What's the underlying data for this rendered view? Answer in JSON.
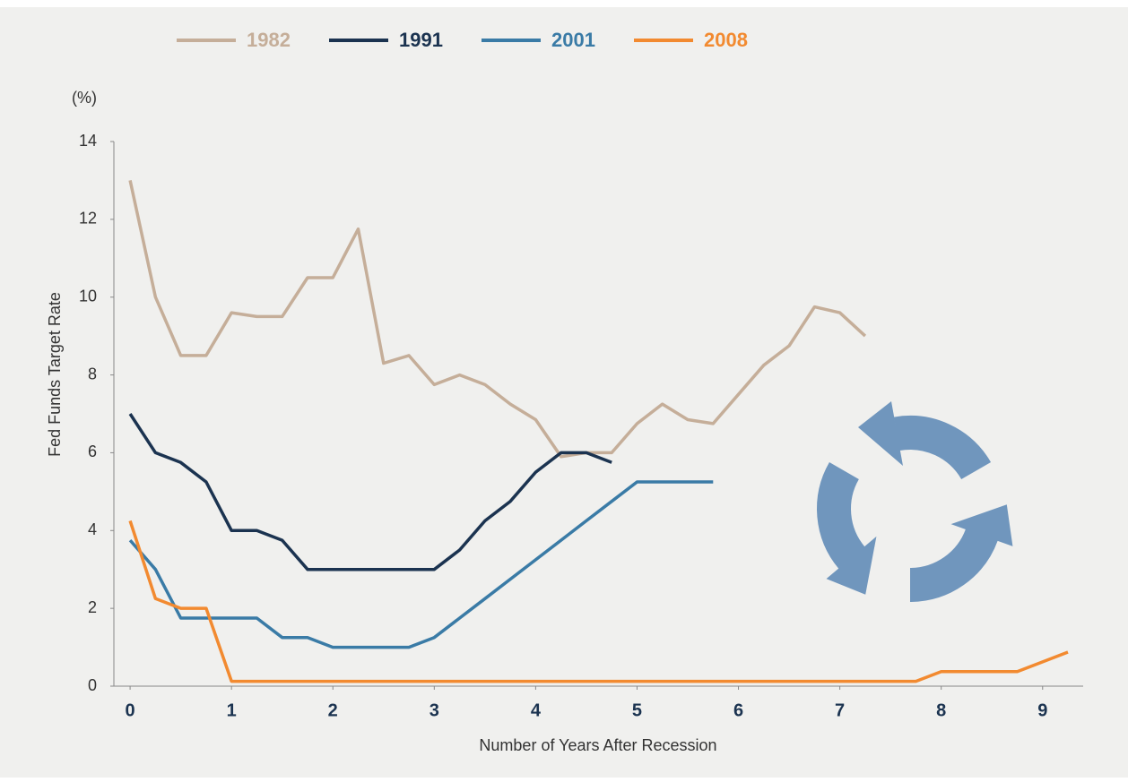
{
  "chart_data": {
    "type": "line",
    "y_unit": "(%)",
    "ylabel": "Fed Funds Target Rate",
    "xlabel": "Number of Years After Recession",
    "x": [
      0,
      0.25,
      0.5,
      0.75,
      1,
      1.25,
      1.5,
      1.75,
      2,
      2.25,
      2.5,
      2.75,
      3,
      3.25,
      3.5,
      3.75,
      4,
      4.25,
      4.5,
      4.75,
      5,
      5.25,
      5.5,
      5.75,
      6,
      6.25,
      6.5,
      6.75,
      7,
      7.25,
      7.5,
      7.75,
      8,
      8.25,
      8.5,
      8.75,
      9,
      9.25
    ],
    "series": [
      {
        "name": "1982",
        "color": "#c5ae99",
        "values": [
          13,
          10,
          8.5,
          8.5,
          9.6,
          9.5,
          9.5,
          10.5,
          10.5,
          11.75,
          8.3,
          8.5,
          7.75,
          8,
          7.75,
          7.25,
          6.85,
          5.9,
          6,
          6,
          6.75,
          7.25,
          6.85,
          6.75,
          7.5,
          8.25,
          8.75,
          9.75,
          9.6,
          9,
          null,
          null,
          null,
          null,
          null,
          null,
          null,
          null
        ]
      },
      {
        "name": "1991",
        "color": "#1b3350",
        "values": [
          7,
          6,
          5.75,
          5.25,
          4,
          4,
          3.75,
          3,
          3,
          3,
          3,
          3,
          3,
          3.5,
          4.25,
          4.75,
          5.5,
          6,
          6,
          5.75,
          null,
          null,
          null,
          null,
          null,
          null,
          null,
          null,
          null,
          null,
          null,
          null,
          null,
          null,
          null,
          null,
          null,
          null
        ]
      },
      {
        "name": "2001",
        "color": "#3a7ba6",
        "values": [
          3.75,
          3,
          1.75,
          1.75,
          1.75,
          1.75,
          1.25,
          1.25,
          1,
          1,
          1,
          1,
          1.25,
          1.75,
          2.25,
          2.75,
          3.25,
          3.75,
          4.25,
          4.75,
          5.25,
          5.25,
          5.25,
          5.25,
          null,
          null,
          null,
          null,
          null,
          null,
          null,
          null,
          null,
          null,
          null,
          null,
          null,
          null
        ]
      },
      {
        "name": "2008",
        "color": "#f28a30",
        "values": [
          4.25,
          2.25,
          2,
          2,
          0.125,
          0.125,
          0.125,
          0.125,
          0.125,
          0.125,
          0.125,
          0.125,
          0.125,
          0.125,
          0.125,
          0.125,
          0.125,
          0.125,
          0.125,
          0.125,
          0.125,
          0.125,
          0.125,
          0.125,
          0.125,
          0.125,
          0.125,
          0.125,
          0.125,
          0.125,
          0.125,
          0.125,
          0.375,
          0.375,
          0.375,
          0.375,
          0.625,
          0.875
        ]
      }
    ],
    "xlim": [
      -0.16,
      9.4
    ],
    "xticks": [
      0,
      1,
      2,
      3,
      4,
      5,
      6,
      7,
      8,
      9
    ],
    "ylim": [
      0,
      14
    ],
    "yticks": [
      0,
      2,
      4,
      6,
      8,
      10,
      12,
      14
    ]
  }
}
